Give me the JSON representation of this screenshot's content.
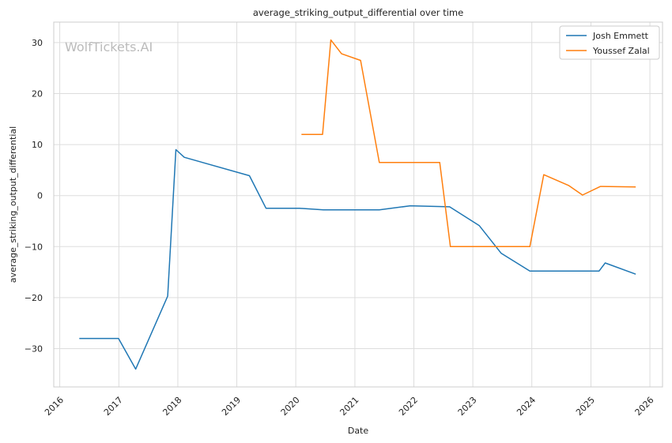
{
  "chart_data": {
    "type": "line",
    "title": "average_striking_output_differential over time",
    "xlabel": "Date",
    "ylabel": "average_striking_output_differential",
    "watermark": "WolfTickets.AI",
    "x_range": [
      "2015-11-25",
      "2026-03-20"
    ],
    "ylim": [
      -37.5,
      34
    ],
    "x_ticks": [
      "2016",
      "2017",
      "2018",
      "2019",
      "2020",
      "2021",
      "2022",
      "2023",
      "2024",
      "2025",
      "2026"
    ],
    "y_ticks": [
      30,
      20,
      10,
      0,
      -10,
      -20,
      -30
    ],
    "y_tick_labels": [
      "30",
      "20",
      "10",
      "0",
      "−10",
      "−20",
      "−30"
    ],
    "grid": true,
    "legend_position": "top-right",
    "series": [
      {
        "name": "Josh Emmett",
        "color": "#1f77b4",
        "points": [
          [
            "2016-05-01",
            -28.0
          ],
          [
            "2016-12-30",
            -28.0
          ],
          [
            "2017-04-15",
            -34.0
          ],
          [
            "2017-10-30",
            -19.7
          ],
          [
            "2017-12-20",
            9.0
          ],
          [
            "2018-02-10",
            7.5
          ],
          [
            "2019-03-20",
            3.9
          ],
          [
            "2019-07-01",
            -2.5
          ],
          [
            "2020-01-25",
            -2.5
          ],
          [
            "2020-06-20",
            -2.8
          ],
          [
            "2021-06-01",
            -2.8
          ],
          [
            "2021-12-10",
            -2.0
          ],
          [
            "2022-08-10",
            -2.2
          ],
          [
            "2023-02-10",
            -5.9
          ],
          [
            "2023-06-25",
            -11.3
          ],
          [
            "2023-12-20",
            -14.8
          ],
          [
            "2025-02-20",
            -14.8
          ],
          [
            "2025-03-30",
            -13.2
          ],
          [
            "2025-10-05",
            -15.4
          ]
        ]
      },
      {
        "name": "Youssef Zalal",
        "color": "#ff7f0e",
        "points": [
          [
            "2020-02-05",
            12.0
          ],
          [
            "2020-06-15",
            12.0
          ],
          [
            "2020-08-05",
            30.5
          ],
          [
            "2020-10-10",
            27.8
          ],
          [
            "2021-02-05",
            26.5
          ],
          [
            "2021-06-01",
            6.5
          ],
          [
            "2022-06-10",
            6.5
          ],
          [
            "2022-08-15",
            -10.0
          ],
          [
            "2023-12-20",
            -10.0
          ],
          [
            "2024-03-15",
            4.1
          ],
          [
            "2024-08-15",
            2.0
          ],
          [
            "2024-11-10",
            0.1
          ],
          [
            "2025-03-01",
            1.8
          ],
          [
            "2025-10-05",
            1.7
          ]
        ]
      }
    ]
  }
}
